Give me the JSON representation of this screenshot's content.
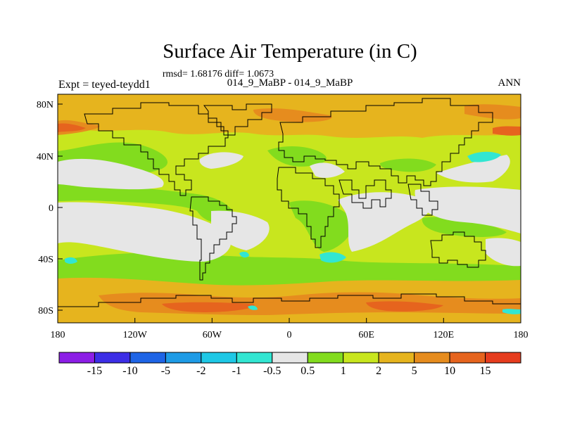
{
  "title": "Surface Air Temperature (in C)",
  "stats": "rmsd= 1.68176  diff= 1.0673",
  "left_label": "Expt = teyed-teydd1",
  "center_label": "014_9_MaBP - 014_9_MaBP",
  "right_label": "ANN",
  "x_ticks": [
    "180",
    "120W",
    "60W",
    "0",
    "60E",
    "120E",
    "180"
  ],
  "y_ticks": [
    "80N",
    "40N",
    "0",
    "40S",
    "80S"
  ],
  "colorbar": {
    "labels": [
      "-15",
      "-10",
      "-5",
      "-2",
      "-1",
      "-0.5",
      "0.5",
      "1",
      "2",
      "5",
      "10",
      "15"
    ],
    "colors": [
      "#8c1ee6",
      "#3c2ee6",
      "#1e64e6",
      "#1e9be6",
      "#1ec8e6",
      "#32e6d2",
      "#e6e6e6",
      "#82dc1e",
      "#c8e61e",
      "#e6b41e",
      "#e68c1e",
      "#e6641e",
      "#e63c1e"
    ]
  },
  "map_colors": {
    "near_zero": "#e6e6e6",
    "pos_0_5_to_1": "#82dc1e",
    "pos_1_to_2": "#c8e61e",
    "pos_2_to_5": "#e6b41e",
    "pos_5_to_10": "#e68c1e",
    "pos_10_to_15": "#e6641e",
    "neg_1_to_0_5": "#32e6d2"
  }
}
